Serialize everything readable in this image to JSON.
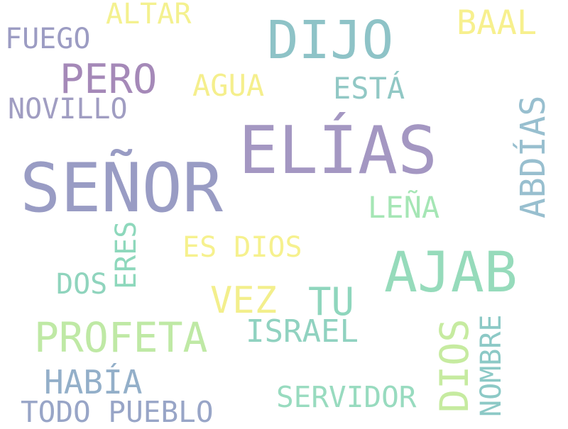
{
  "words": [
    {
      "text": "SEÑOR",
      "color": "#999cc4"
    },
    {
      "text": "ELÍAS",
      "color": "#a497c2"
    },
    {
      "text": "AJAB",
      "color": "#96dbbb"
    },
    {
      "text": "DIJO",
      "color": "#8ec3c7"
    },
    {
      "text": "PERO",
      "color": "#a589b8"
    },
    {
      "text": "PROFETA",
      "color": "#bfe9a5"
    },
    {
      "text": "ABDÍAS",
      "color": "#98bfcf"
    },
    {
      "text": "VEZ",
      "color": "#f3ef8c"
    },
    {
      "text": "TU",
      "color": "#8fd6bd"
    },
    {
      "text": "DIOS",
      "color": "#c6eba0"
    },
    {
      "text": "BAAL",
      "color": "#f7f08e"
    },
    {
      "text": "ESTÁ",
      "color": "#91c8c5"
    },
    {
      "text": "AGUA",
      "color": "#f5ef8d"
    },
    {
      "text": "LEÑA",
      "color": "#a5e6b5"
    },
    {
      "text": "ES DIOS",
      "color": "#f6f18e"
    },
    {
      "text": "ISRAEL",
      "color": "#90d2c0"
    },
    {
      "text": "HABÍA",
      "color": "#93afc9"
    },
    {
      "text": "TODO PUEBLO",
      "color": "#98a5c7"
    },
    {
      "text": "SERVIDOR",
      "color": "#98dbbf"
    },
    {
      "text": "NOMBRE",
      "color": "#8cc9c6"
    },
    {
      "text": "FUEGO",
      "color": "#9c9cc3"
    },
    {
      "text": "NOVILLO",
      "color": "#a09dc2"
    },
    {
      "text": "ALTAR",
      "color": "#f4f18f"
    },
    {
      "text": "DOS",
      "color": "#8fd4bd"
    },
    {
      "text": "ERES",
      "color": "#8ed8bc"
    }
  ]
}
